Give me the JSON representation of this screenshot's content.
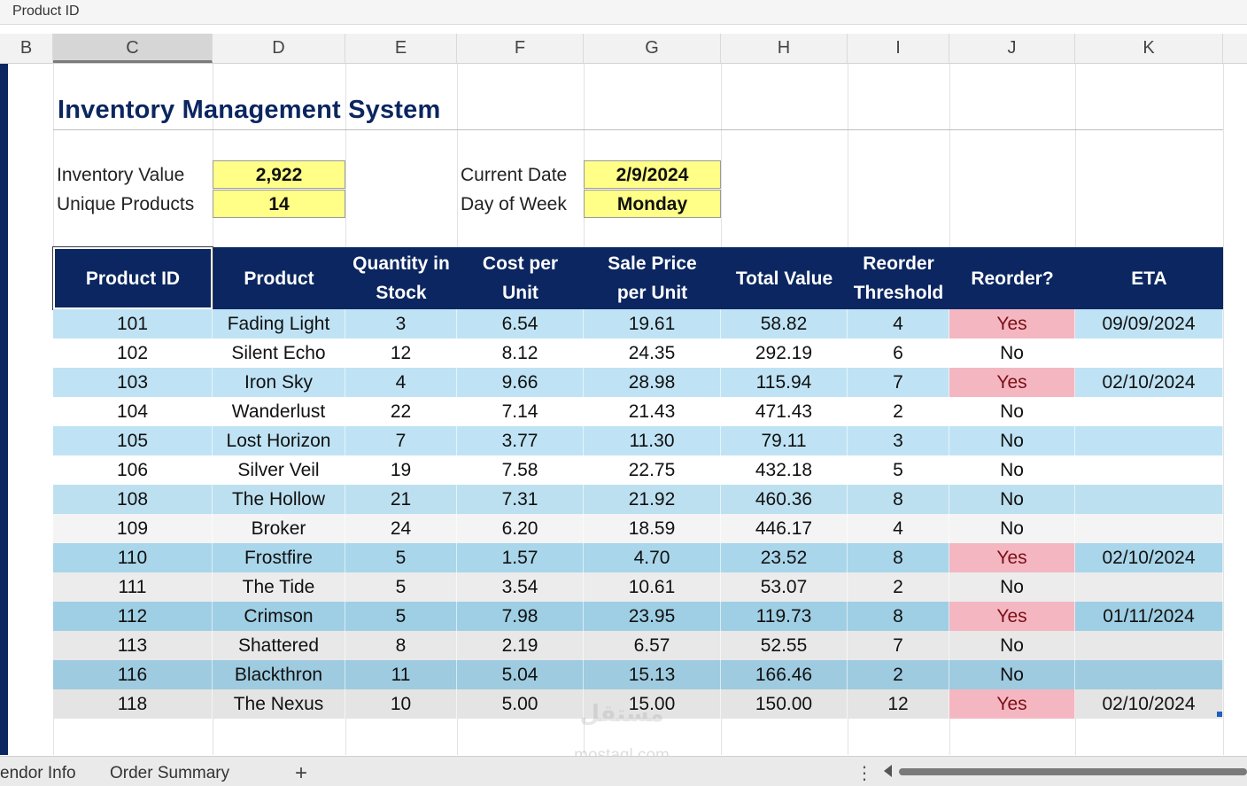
{
  "formula_bar": {
    "name_box": "Product ID"
  },
  "columns": [
    "B",
    "C",
    "D",
    "E",
    "F",
    "G",
    "H",
    "I",
    "J",
    "K"
  ],
  "selected_column": "C",
  "title": "Inventory Management System",
  "summary": {
    "inventory_value_label": "Inventory Value",
    "inventory_value": "2,922",
    "unique_products_label": "Unique Products",
    "unique_products": "14",
    "current_date_label": "Current Date",
    "current_date": "2/9/2024",
    "day_of_week_label": "Day of Week",
    "day_of_week": "Monday"
  },
  "table": {
    "headers": [
      "Product ID",
      "Product",
      "Quantity in Stock",
      "Cost per Unit",
      "Sale Price per Unit",
      "Total Value",
      "Reorder Threshold",
      "Reorder?",
      "ETA"
    ],
    "rows": [
      [
        "101",
        "Fading Light",
        "3",
        "6.54",
        "19.61",
        "58.82",
        "4",
        "Yes",
        "09/09/2024"
      ],
      [
        "102",
        "Silent Echo",
        "12",
        "8.12",
        "24.35",
        "292.19",
        "6",
        "No",
        ""
      ],
      [
        "103",
        "Iron Sky",
        "4",
        "9.66",
        "28.98",
        "115.94",
        "7",
        "Yes",
        "02/10/2024"
      ],
      [
        "104",
        "Wanderlust",
        "22",
        "7.14",
        "21.43",
        "471.43",
        "2",
        "No",
        ""
      ],
      [
        "105",
        "Lost Horizon",
        "7",
        "3.77",
        "11.30",
        "79.11",
        "3",
        "No",
        ""
      ],
      [
        "106",
        "Silver Veil",
        "19",
        "7.58",
        "22.75",
        "432.18",
        "5",
        "No",
        ""
      ],
      [
        "108",
        "The Hollow",
        "21",
        "7.31",
        "21.92",
        "460.36",
        "8",
        "No",
        ""
      ],
      [
        "109",
        "Broker",
        "24",
        "6.20",
        "18.59",
        "446.17",
        "4",
        "No",
        ""
      ],
      [
        "110",
        "Frostfire",
        "5",
        "1.57",
        "4.70",
        "23.52",
        "8",
        "Yes",
        "02/10/2024"
      ],
      [
        "111",
        "The Tide",
        "5",
        "3.54",
        "10.61",
        "53.07",
        "2",
        "No",
        ""
      ],
      [
        "112",
        "Crimson",
        "5",
        "7.98",
        "23.95",
        "119.73",
        "8",
        "Yes",
        "01/11/2024"
      ],
      [
        "113",
        "Shattered",
        "8",
        "2.19",
        "6.57",
        "52.55",
        "7",
        "No",
        ""
      ],
      [
        "116",
        "Blackthron",
        "11",
        "5.04",
        "15.13",
        "166.46",
        "2",
        "No",
        ""
      ],
      [
        "118",
        "The Nexus",
        "10",
        "5.00",
        "15.00",
        "150.00",
        "12",
        "Yes",
        "02/10/2024"
      ]
    ],
    "row_colors": [
      "#bfe3f4",
      "#ffffff",
      "#bfe3f4",
      "#ffffff",
      "#bfe3f4",
      "#ffffff",
      "#bde0f0",
      "#f4f4f4",
      "#a9d6ea",
      "#ececec",
      "#9fcfe4",
      "#e8e8e8",
      "#9ecbe0",
      "#e4e4e4"
    ]
  },
  "sheet_tabs": {
    "vendor_info": "endor Info",
    "order_summary": "Order Summary",
    "add": "+"
  },
  "watermark": {
    "line1": "مستقل",
    "line2": "mostaql.com"
  },
  "colors": {
    "header_navy": "#0b2660",
    "highlight_yellow": "#ffff88",
    "reorder_pink": "#f4b7c1"
  }
}
